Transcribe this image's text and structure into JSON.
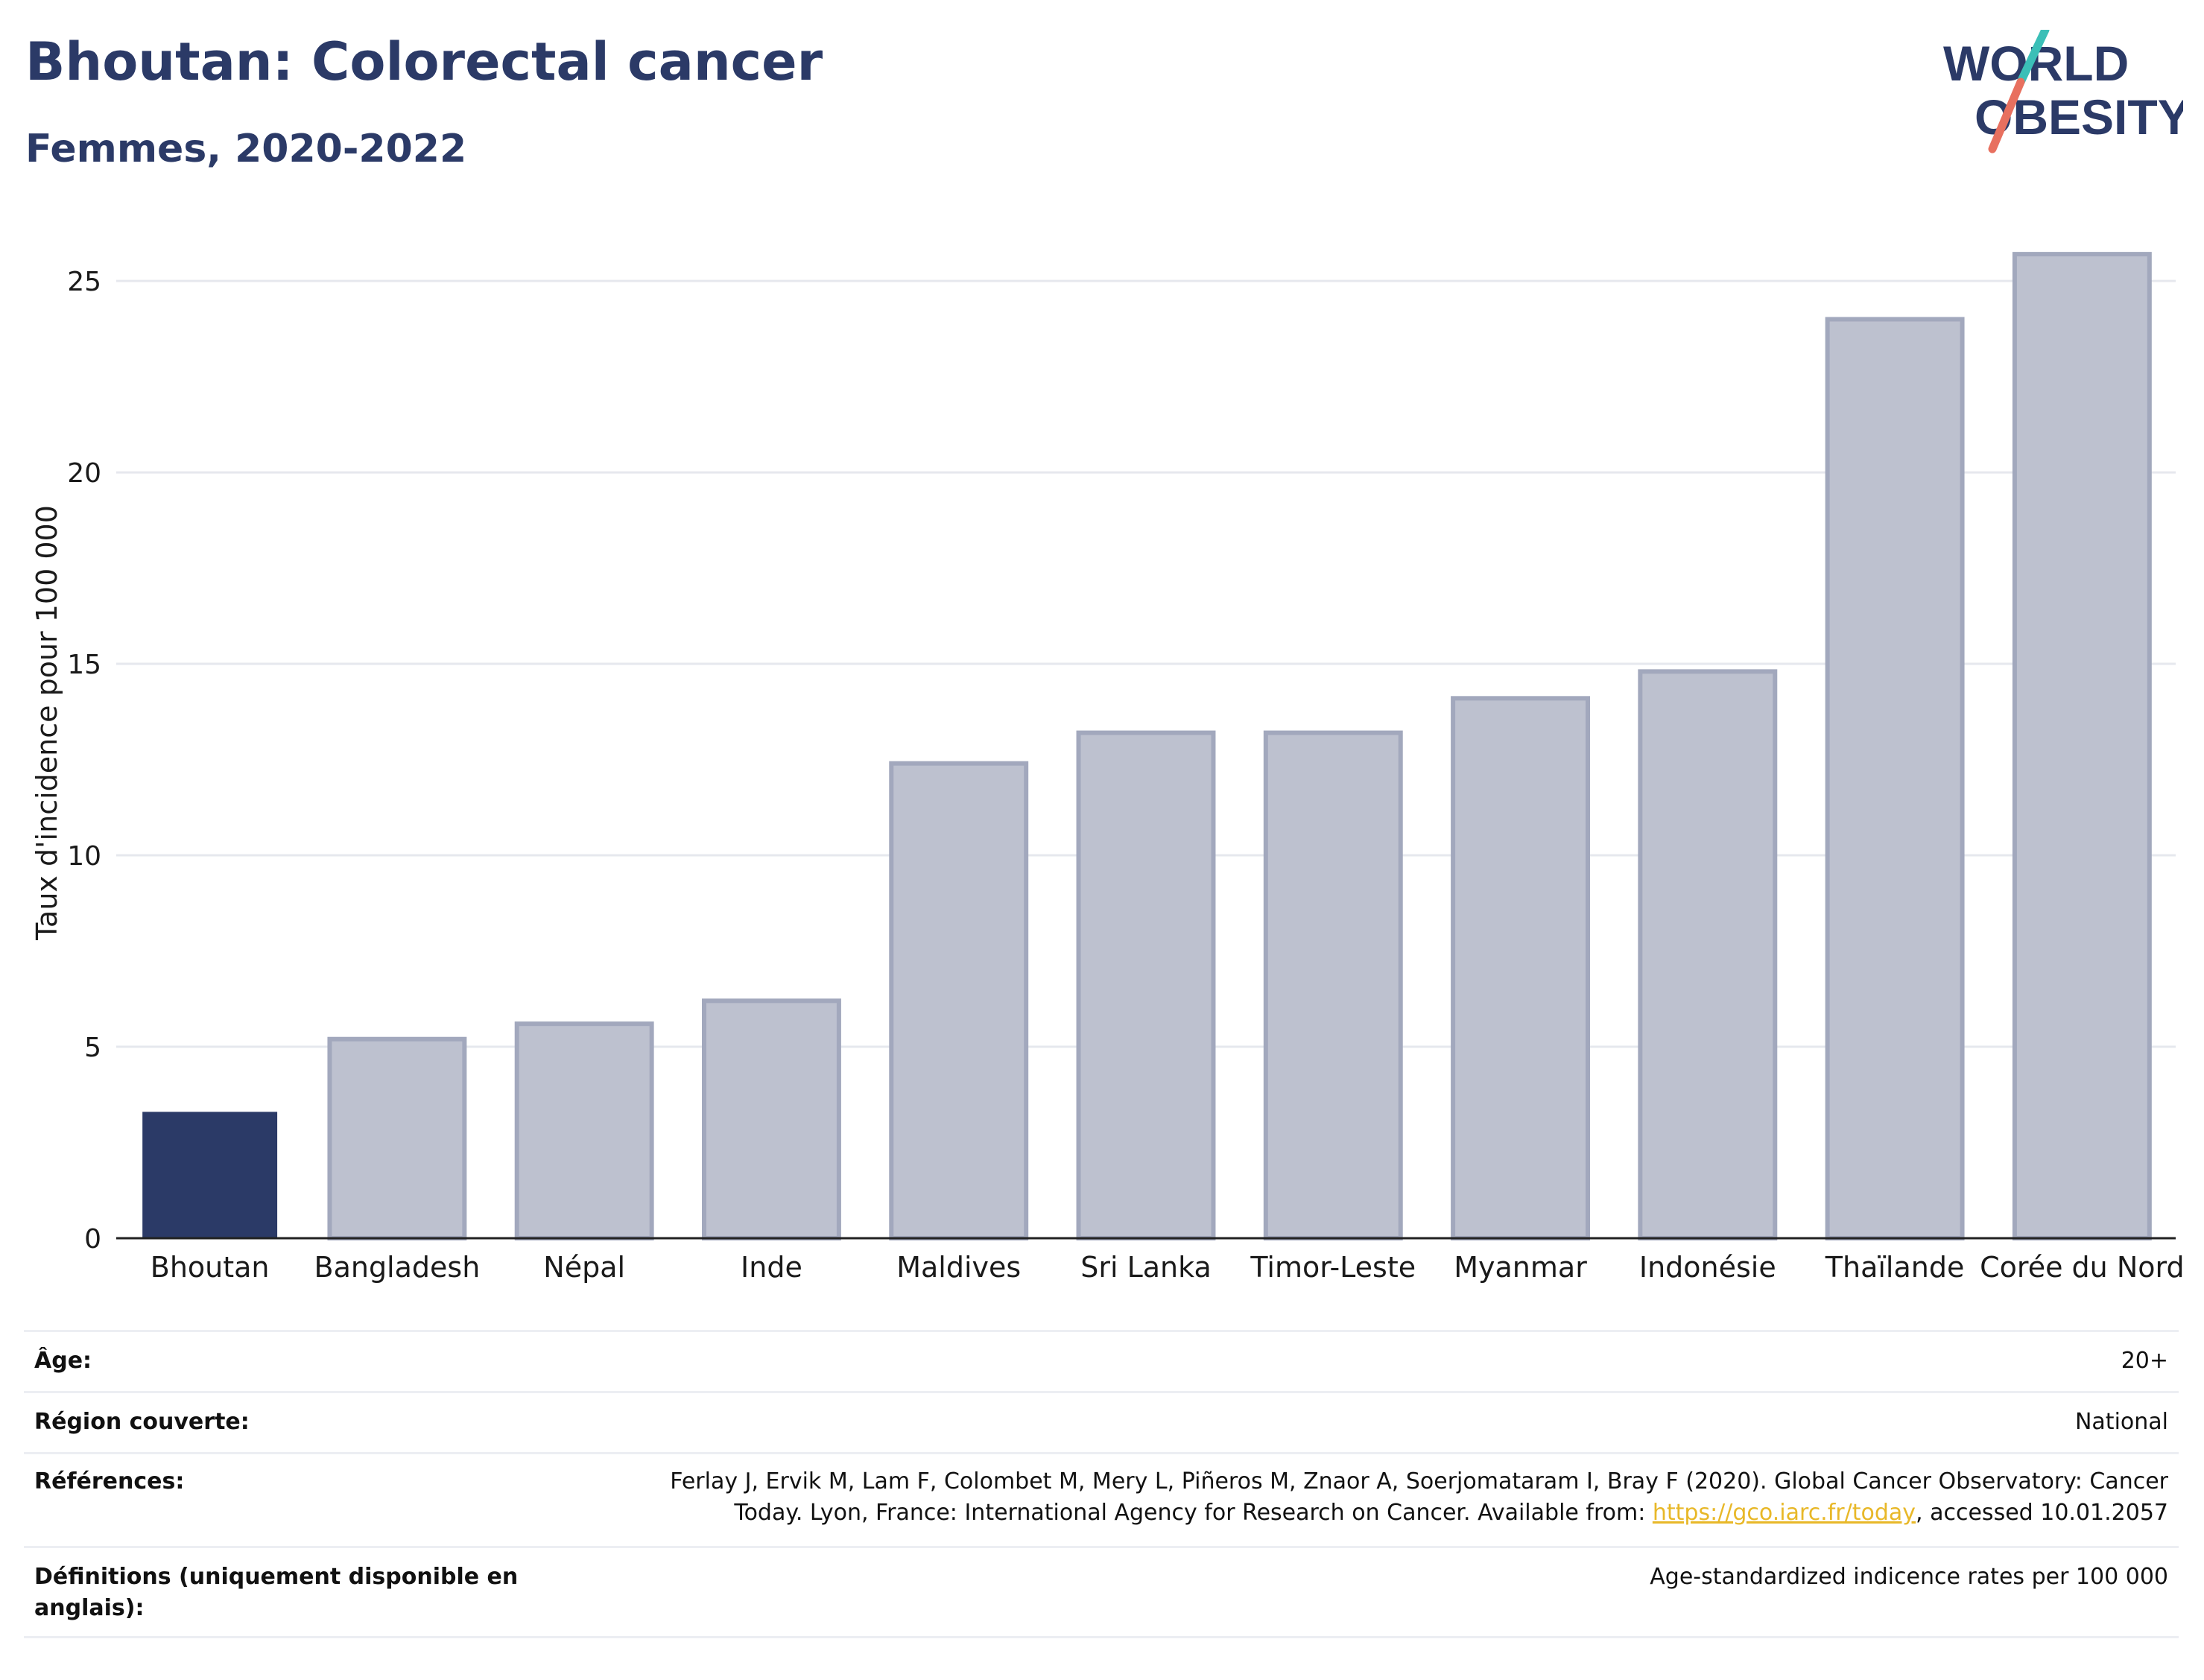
{
  "header": {
    "title": "Bhoutan: Colorectal cancer",
    "subtitle": "Femmes, 2020-2022"
  },
  "logo": {
    "line1": "WORLD",
    "line2": "OBESITY",
    "colors": {
      "text": "#2b3a67",
      "teal": "#3bbfb7",
      "coral": "#e8705f"
    }
  },
  "colors": {
    "highlight_bar": "#2b3a67",
    "other_bar_fill": "#bdc1cf",
    "other_bar_stroke": "#a2a8bd",
    "grid": "#e6e8ee",
    "axis": "#222222"
  },
  "chart_data": {
    "type": "bar",
    "categories": [
      "Bhoutan",
      "Bangladesh",
      "Népal",
      "Inde",
      "Maldives",
      "Sri Lanka",
      "Timor-Leste",
      "Myanmar",
      "Indonésie",
      "Thaïlande",
      "Corée du Nord"
    ],
    "values": [
      3.3,
      5.2,
      5.6,
      6.2,
      12.4,
      13.2,
      13.2,
      14.1,
      14.8,
      24.0,
      25.7
    ],
    "highlight": "Bhoutan",
    "ylabel": "Taux d'incidence pour 100 000",
    "xlabel": "",
    "ylim": [
      0,
      26.5
    ],
    "yticks": [
      0,
      5,
      10,
      15,
      20,
      25
    ],
    "grid": true
  },
  "info": {
    "rows": [
      {
        "label": "Âge:",
        "value": "20+"
      },
      {
        "label": "Région couverte:",
        "value": "National"
      },
      {
        "label": "Références:",
        "value_pre": "Ferlay J, Ervik M, Lam F, Colombet M, Mery L, Piñeros M, Znaor A, Soerjomataram I, Bray F (2020). Global Cancer Observatory: Cancer Today. Lyon, France: International Agency for Research on Cancer. Available from: ",
        "link": "https://gco.iarc.fr/today",
        "value_post": ", accessed 10.01.2057"
      },
      {
        "label": "Définitions (uniquement disponible en anglais):",
        "value": "Age-standardized indicence rates per 100 000"
      }
    ]
  }
}
